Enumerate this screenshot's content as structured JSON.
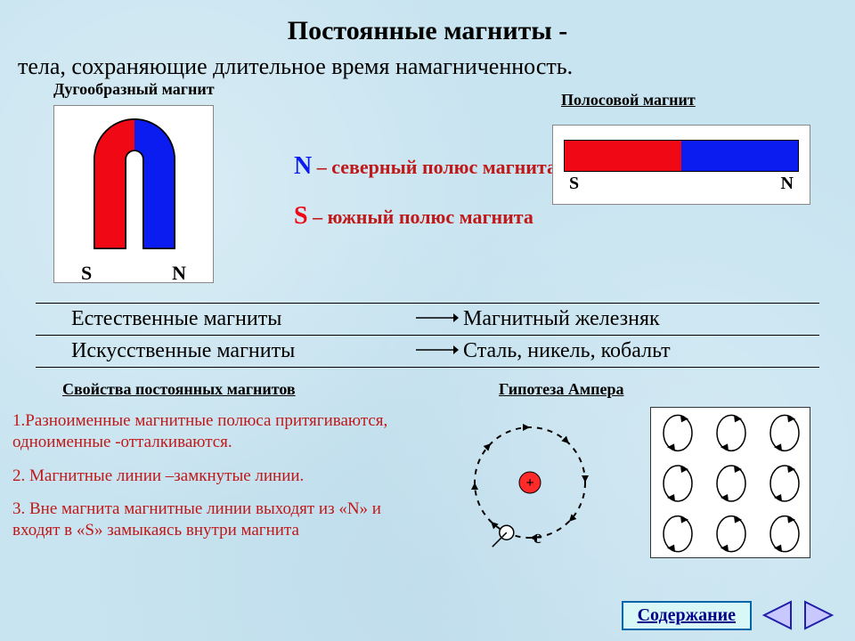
{
  "colors": {
    "north": "#0a1cf0",
    "south": "#f00814",
    "text_red": "#c01818",
    "text_blue": "#0000a0",
    "bg": "#c8e4f0",
    "white": "#ffffff",
    "black": "#000000",
    "nucleus": "#ff2a2a",
    "nav_fill": "#c8c8ff",
    "nav_stroke": "#2020aa"
  },
  "title": "Постоянные  магниты -",
  "subtitle": "тела,  сохраняющие  длительное  время  намагниченность.",
  "horseshoe_label": "Дугообразный  магнит",
  "bar_label": "Полосовой  магнит",
  "pole_s": "S",
  "pole_n": "N",
  "def_n_sym": "N",
  "def_n_text": " – северный  полюс магнита",
  "def_s_sym": "S",
  "def_s_text": " – южный  полюс магнита",
  "table": {
    "rows": [
      {
        "left": "Естественные  магниты",
        "right": "Магнитный  железняк"
      },
      {
        "left": "Искусственные  магниты",
        "right": "Сталь, никель, кобальт"
      }
    ]
  },
  "props_heading": "Свойства  постоянных  магнитов",
  "hypothesis_heading": "Гипотеза   Ампера",
  "props": [
    "1.Разноименные  магнитные  полюса притягиваются,  одноименные  -отталкиваются.",
    "2. Магнитные  линии –замкнутые  линии.",
    "3. Вне магнита  магнитные  линии  выходят  из «N»  и  входят в «S»  замыкаясь  внутри магнита"
  ],
  "electron_label": "е",
  "content_button": "Содержание",
  "atom": {
    "orbit_radius": 62,
    "nucleus_radius": 12,
    "dash": "6,6",
    "electron_angle_deg": 115,
    "arrow_count": 8
  },
  "ampere_grid": {
    "rows": 3,
    "cols": 3
  }
}
